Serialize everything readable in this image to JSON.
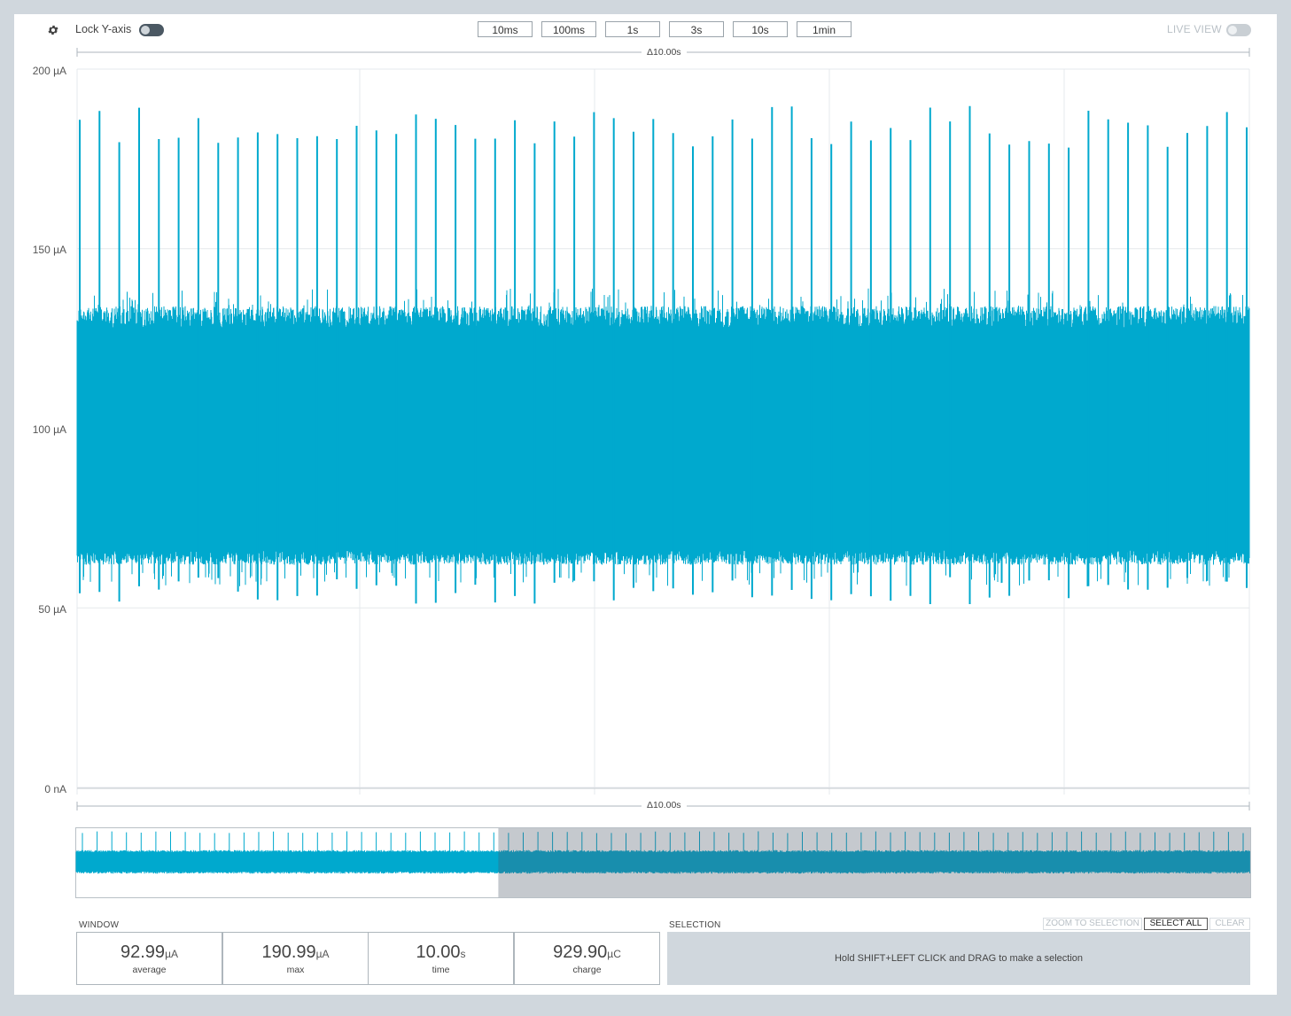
{
  "toolbar": {
    "settings_icon": "gear-icon",
    "lock_y_axis_label": "Lock Y-axis",
    "lock_y_axis_on": true,
    "time_windows": [
      "10ms",
      "100ms",
      "1s",
      "3s",
      "10s",
      "1min"
    ],
    "live_view_label": "LIVE VIEW",
    "live_view_on": false
  },
  "chart": {
    "window_delta_label": "Δ10.00s",
    "y_ticks": [
      "200 µA",
      "150 µA",
      "100 µA",
      "50 µA",
      "0 nA"
    ]
  },
  "chart_data": {
    "type": "line",
    "title": "",
    "xlabel": "",
    "ylabel": "",
    "x_range": [
      0,
      10
    ],
    "ylim": [
      0,
      200
    ],
    "grid": true,
    "series": [
      {
        "color": "#00a9ce",
        "baseline_band": [
          62,
          134
        ],
        "spike_peak_approx": 186,
        "spike_count": 60,
        "min_dip_approx": 51
      }
    ]
  },
  "minimap": {
    "signal_color": "#00a9ce",
    "shaded_fraction": 0.64
  },
  "window_stats": {
    "section_label": "WINDOW",
    "stats": [
      {
        "value": "92.99",
        "unit": "µA",
        "name": "average"
      },
      {
        "value": "190.99",
        "unit": "µA",
        "name": "max"
      },
      {
        "value": "10.00",
        "unit": "s",
        "name": "time"
      },
      {
        "value": "929.90",
        "unit": "µC",
        "name": "charge"
      }
    ]
  },
  "selection": {
    "section_label": "SELECTION",
    "zoom_to_selection": "ZOOM TO SELECTION",
    "select_all": "SELECT ALL",
    "clear": "CLEAR",
    "hint": "Hold SHIFT+LEFT CLICK and DRAG to make a selection"
  }
}
